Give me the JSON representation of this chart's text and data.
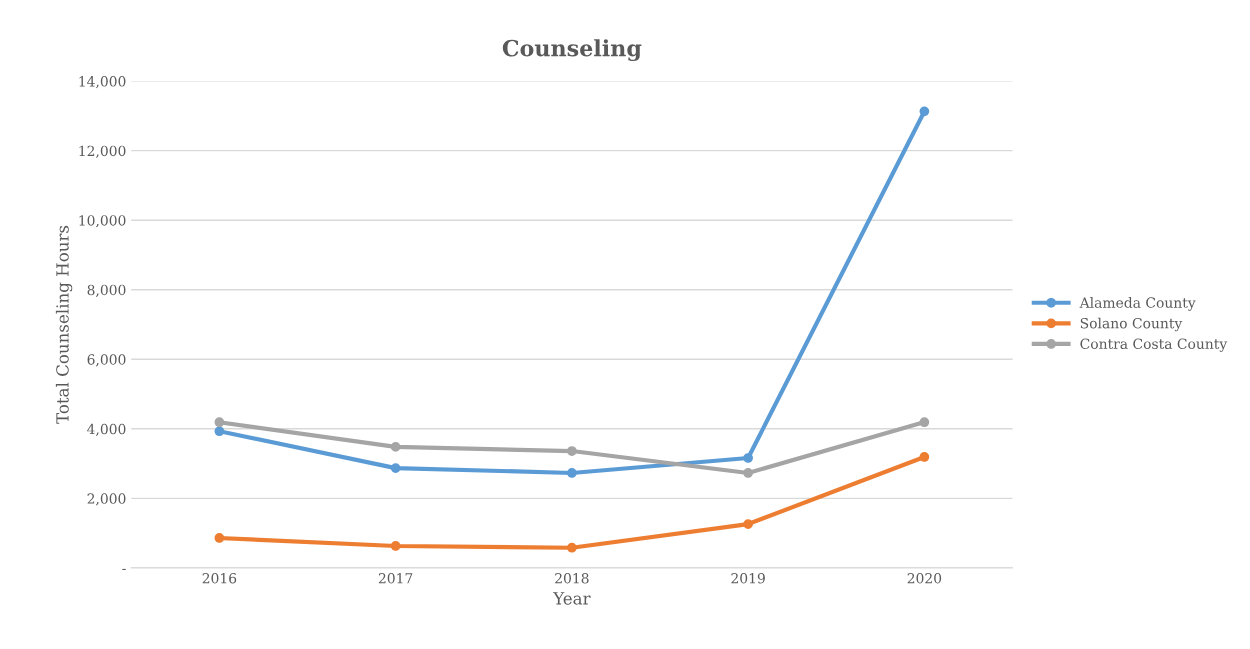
{
  "chart_data": {
    "type": "line",
    "title": "Counseling",
    "xlabel": "Year",
    "ylabel": "Total Counseling Hours",
    "categories": [
      "2016",
      "2017",
      "2018",
      "2019",
      "2020"
    ],
    "series": [
      {
        "name": "Alameda County",
        "color": "#5b9bd5",
        "values": [
          3930,
          2870,
          2730,
          3160,
          13130
        ]
      },
      {
        "name": "Solano County",
        "color": "#ed7d31",
        "values": [
          860,
          630,
          580,
          1260,
          3190
        ]
      },
      {
        "name": "Contra Costa County",
        "color": "#a5a5a5",
        "values": [
          4190,
          3480,
          3360,
          2730,
          4190
        ]
      }
    ],
    "ylim": [
      0,
      14000
    ],
    "yticks": [
      {
        "value": 0,
        "label": "-"
      },
      {
        "value": 2000,
        "label": "2,000"
      },
      {
        "value": 4000,
        "label": "4,000"
      },
      {
        "value": 6000,
        "label": "6,000"
      },
      {
        "value": 8000,
        "label": "8,000"
      },
      {
        "value": 10000,
        "label": "10,000"
      },
      {
        "value": 12000,
        "label": "12,000"
      },
      {
        "value": 14000,
        "label": "14,000"
      }
    ],
    "grid": "y",
    "legend": "right",
    "marker": "circle",
    "line_style": "solid"
  }
}
